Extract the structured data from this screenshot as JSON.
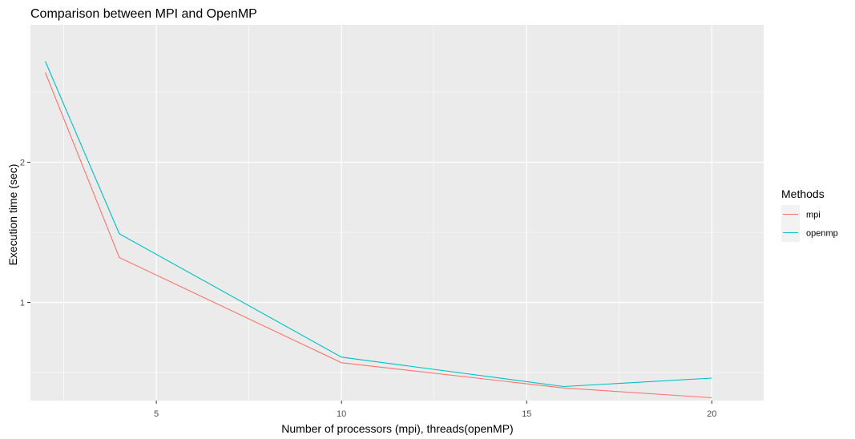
{
  "chart_data": {
    "type": "line",
    "title": "Comparison between MPI and OpenMP",
    "xlabel": "Number of processors (mpi), threads(openMP)",
    "ylabel": "Execution time (sec)",
    "xlim": [
      1.6,
      21.4
    ],
    "ylim": [
      0.3,
      2.98
    ],
    "x_ticks": [
      5,
      10,
      15,
      20
    ],
    "y_ticks": [
      1,
      2
    ],
    "grid": true,
    "legend": {
      "title": "Methods",
      "position": "right"
    },
    "series": [
      {
        "name": "mpi",
        "color": "#F8766D",
        "x": [
          2,
          4,
          10,
          16,
          20
        ],
        "y": [
          2.64,
          1.32,
          0.57,
          0.39,
          0.32
        ]
      },
      {
        "name": "openmp",
        "color": "#00BFC4",
        "x": [
          2,
          4,
          10,
          16,
          20
        ],
        "y": [
          2.72,
          1.49,
          0.61,
          0.4,
          0.46
        ]
      }
    ]
  }
}
